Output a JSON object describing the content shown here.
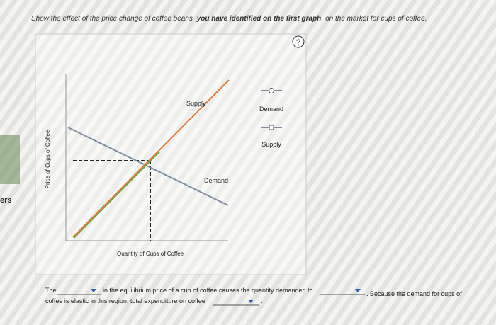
{
  "sidebar": {
    "text": "ers"
  },
  "question": {
    "instruction": [
      "Show the effect of the price change of coffee beans",
      "you have identified on the first graph",
      "on the market for cups of coffee."
    ],
    "help": "?"
  },
  "graph": {
    "y_axis_label": "Price of Cups of Coffee",
    "x_axis_label": "Quantity of Cups of Coffee",
    "supply_label": "Supply",
    "demand_label": "Demand",
    "legend": [
      "Demand",
      "Supply"
    ]
  },
  "answer": {
    "line1": [
      "The",
      "in the equilibrium price of a cup of coffee causes the quantity demanded to",
      ". Because the demand for cups of"
    ],
    "line2": [
      "coffee is elastic in this region, total expenditure on coffee",
      "."
    ]
  }
}
